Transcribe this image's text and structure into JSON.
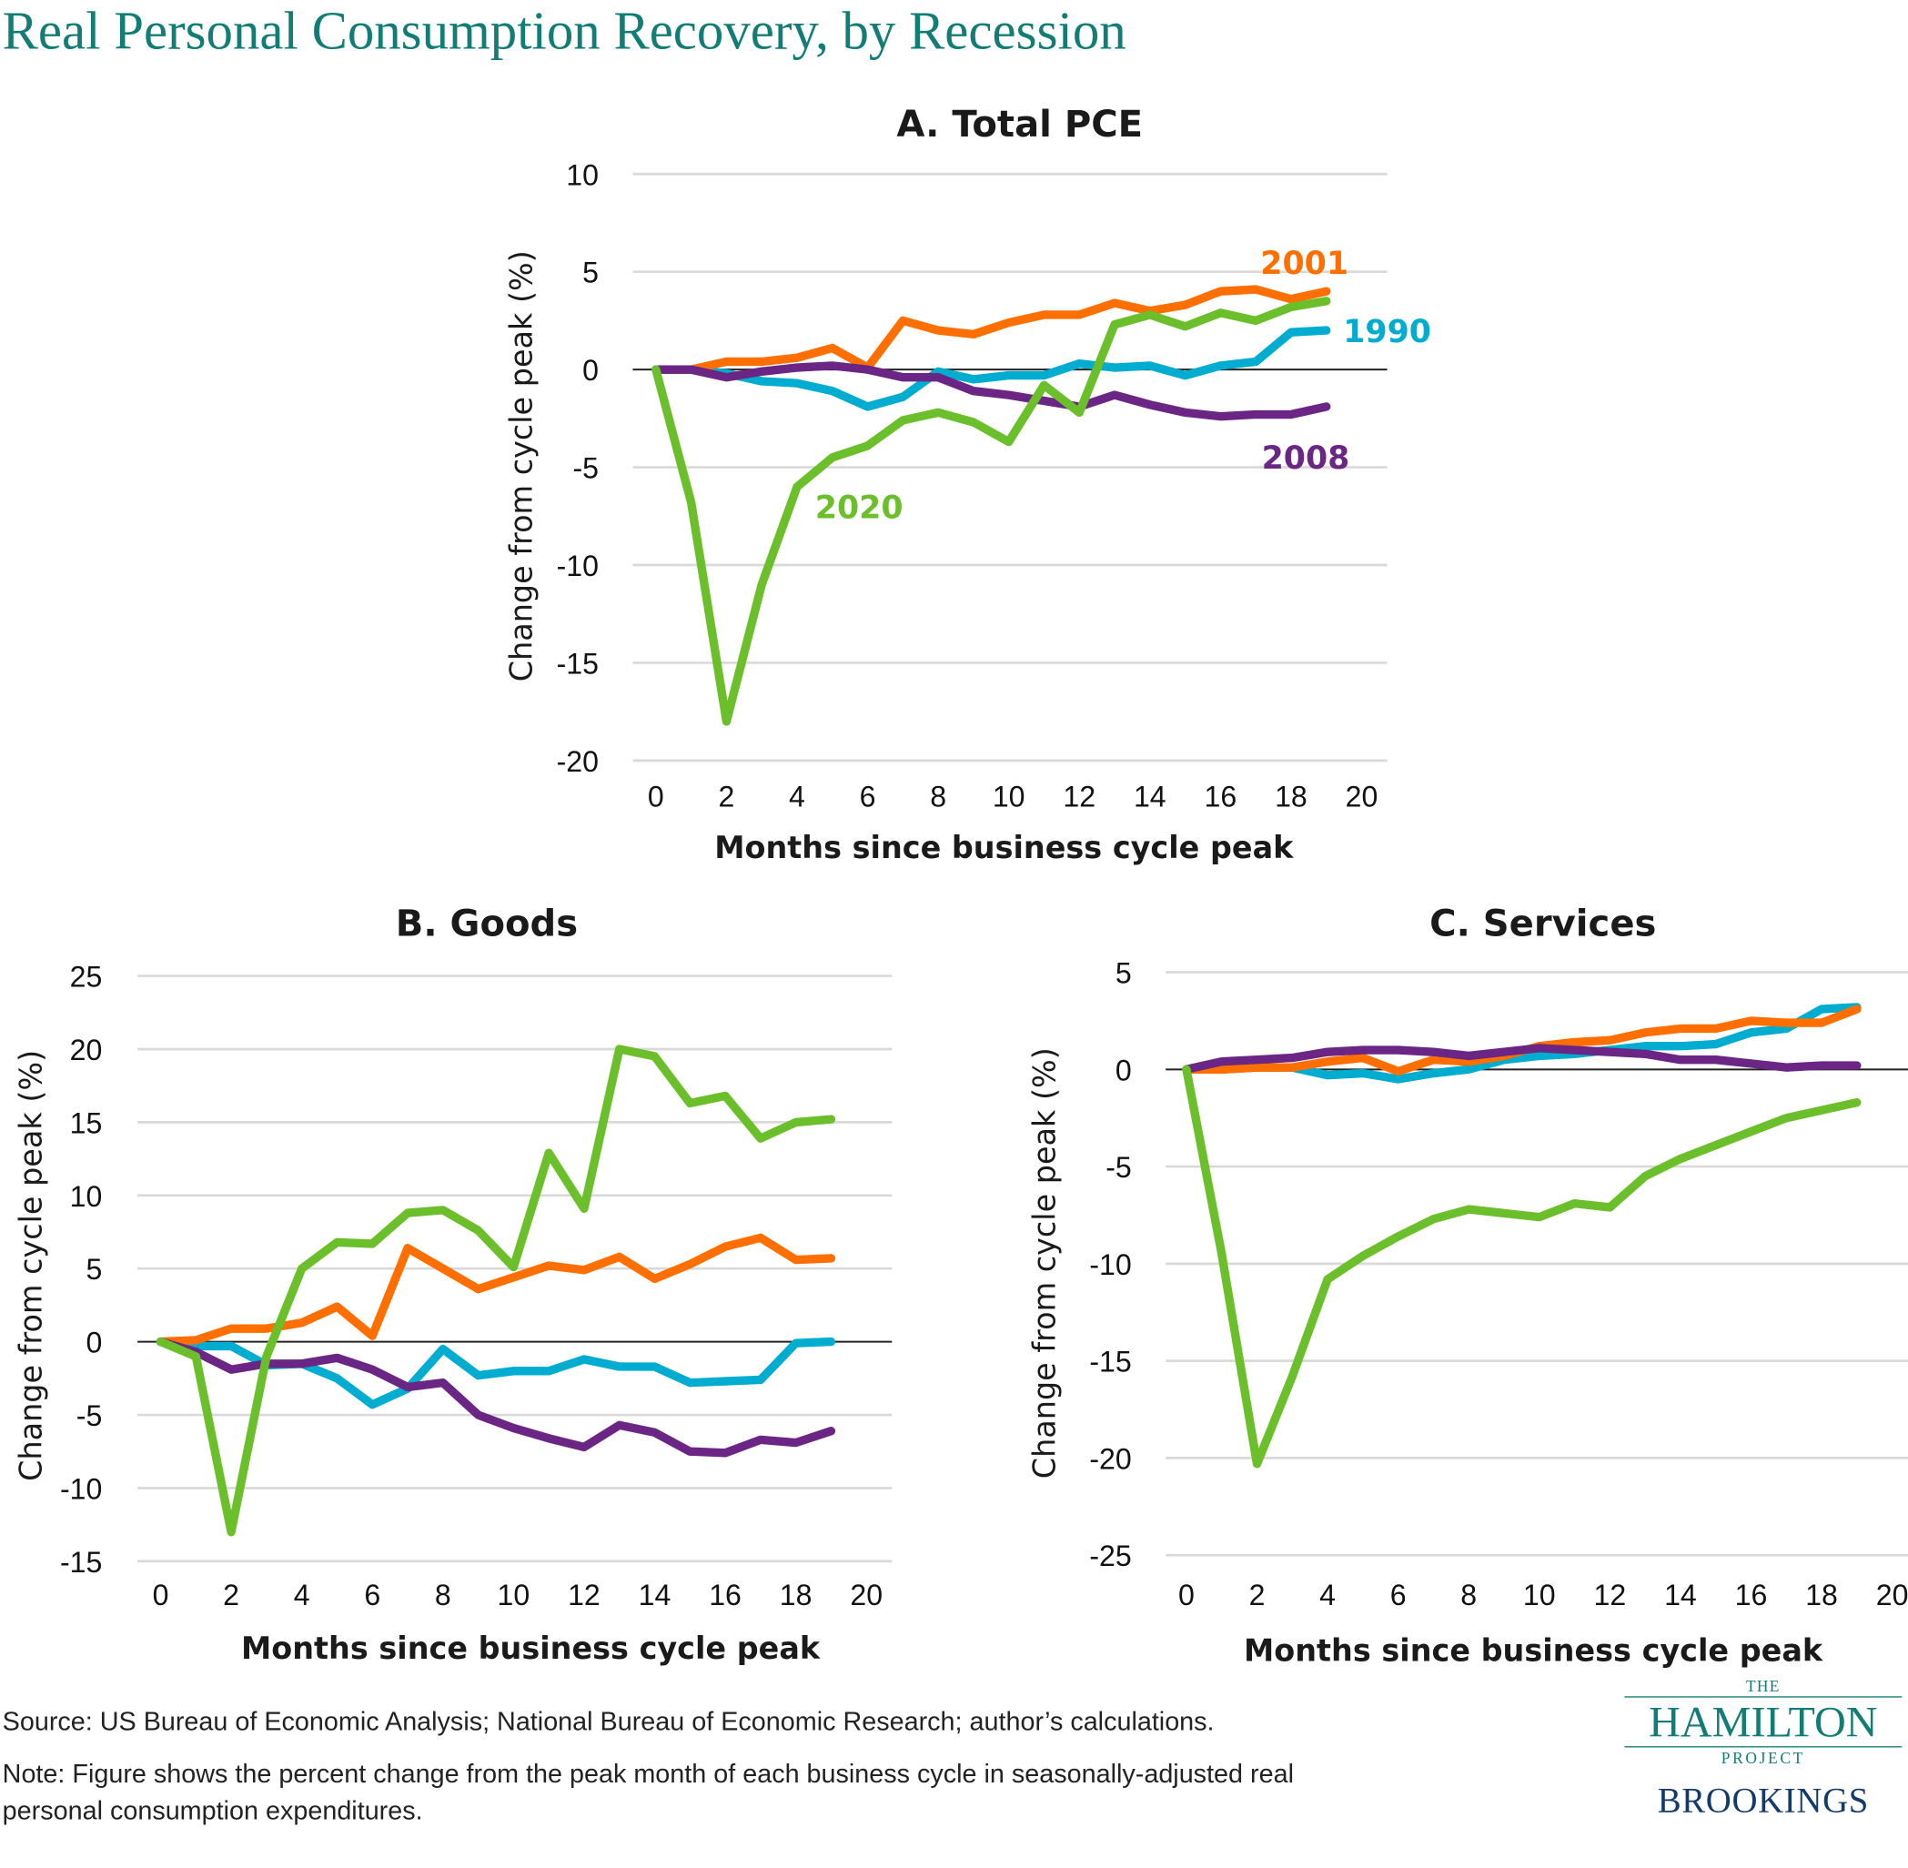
{
  "title": "Real Personal Consumption Recovery, by Recession",
  "colors": {
    "title": "#127d74",
    "1990": "#00acd0",
    "2001": "#ff6f00",
    "2008": "#6b2584",
    "2020": "#6abf2a"
  },
  "chart_data": [
    {
      "type": "line",
      "title": "A. Total PCE",
      "xlabel": "Months since business cycle peak",
      "ylabel": "Change from cycle peak (%)",
      "xlim": [
        0,
        20
      ],
      "ylim": [
        -20,
        10
      ],
      "xticks": [
        0,
        2,
        4,
        6,
        8,
        10,
        12,
        14,
        16,
        18,
        20
      ],
      "yticks": [
        10,
        5,
        0,
        -5,
        -10,
        -15,
        -20
      ],
      "grid": true,
      "x": [
        0,
        1,
        2,
        3,
        4,
        5,
        6,
        7,
        8,
        9,
        10,
        11,
        12,
        13,
        14,
        15,
        16,
        17,
        18,
        19
      ],
      "series": [
        {
          "name": "1990",
          "label_shown": true,
          "values": [
            0,
            0,
            -0.2,
            -0.6,
            -0.7,
            -1.1,
            -1.9,
            -1.4,
            -0.1,
            -0.5,
            -0.3,
            -0.3,
            0.3,
            0.1,
            0.2,
            -0.3,
            0.2,
            0.4,
            1.9,
            2.0
          ]
        },
        {
          "name": "2001",
          "label_shown": true,
          "values": [
            0,
            0,
            0.4,
            0.4,
            0.6,
            1.1,
            0.1,
            2.5,
            2.0,
            1.8,
            2.4,
            2.8,
            2.8,
            3.4,
            3.0,
            3.3,
            4.0,
            4.1,
            3.6,
            4.0
          ]
        },
        {
          "name": "2008",
          "label_shown": true,
          "values": [
            0,
            0,
            -0.4,
            -0.1,
            0.1,
            0.2,
            0.0,
            -0.4,
            -0.4,
            -1.1,
            -1.3,
            -1.6,
            -1.9,
            -1.3,
            -1.8,
            -2.2,
            -2.4,
            -2.3,
            -2.3,
            -1.9
          ]
        },
        {
          "name": "2020",
          "label_shown": true,
          "values": [
            0,
            -6.8,
            -18.0,
            -11.0,
            -6.0,
            -4.5,
            -3.9,
            -2.6,
            -2.2,
            -2.7,
            -3.7,
            -0.8,
            -2.2,
            2.3,
            2.8,
            2.2,
            2.9,
            2.5,
            3.2,
            3.5
          ]
        }
      ]
    },
    {
      "type": "line",
      "title": "B. Goods",
      "xlabel": "Months since business cycle peak",
      "ylabel": "Change from cycle peak (%)",
      "xlim": [
        0,
        20
      ],
      "ylim": [
        -15,
        25
      ],
      "xticks": [
        0,
        2,
        4,
        6,
        8,
        10,
        12,
        14,
        16,
        18,
        20
      ],
      "yticks": [
        25,
        20,
        15,
        10,
        5,
        0,
        -5,
        -10,
        -15
      ],
      "grid": true,
      "x": [
        0,
        1,
        2,
        3,
        4,
        5,
        6,
        7,
        8,
        9,
        10,
        11,
        12,
        13,
        14,
        15,
        16,
        17,
        18,
        19
      ],
      "series": [
        {
          "name": "1990",
          "values": [
            0,
            -0.3,
            -0.3,
            -1.6,
            -1.5,
            -2.5,
            -4.3,
            -3.2,
            -0.5,
            -2.3,
            -2.0,
            -2.0,
            -1.2,
            -1.7,
            -1.7,
            -2.8,
            -2.7,
            -2.6,
            -0.1,
            0.0
          ]
        },
        {
          "name": "2001",
          "values": [
            0,
            0.1,
            0.9,
            0.9,
            1.3,
            2.4,
            0.4,
            6.4,
            5.0,
            3.6,
            4.4,
            5.2,
            4.9,
            5.8,
            4.3,
            5.3,
            6.5,
            7.1,
            5.6,
            5.7
          ]
        },
        {
          "name": "2008",
          "values": [
            0,
            -0.7,
            -1.9,
            -1.5,
            -1.5,
            -1.1,
            -1.9,
            -3.1,
            -2.8,
            -5.0,
            -5.9,
            -6.6,
            -7.2,
            -5.7,
            -6.2,
            -7.5,
            -7.6,
            -6.7,
            -6.9,
            -6.1
          ]
        },
        {
          "name": "2020",
          "values": [
            0,
            -1.0,
            -13.0,
            -1.0,
            5.0,
            6.8,
            6.7,
            8.8,
            9.0,
            7.6,
            5.1,
            12.9,
            9.1,
            20.0,
            19.5,
            16.3,
            16.8,
            13.9,
            15.0,
            15.2
          ]
        }
      ]
    },
    {
      "type": "line",
      "title": "C. Services",
      "xlabel": "Months since business cycle peak",
      "ylabel": "Change from cycle peak (%)",
      "xlim": [
        0,
        20
      ],
      "ylim": [
        -25,
        5
      ],
      "xticks": [
        0,
        2,
        4,
        6,
        8,
        10,
        12,
        14,
        16,
        18,
        20
      ],
      "yticks": [
        5,
        0,
        -5,
        -10,
        -15,
        -20,
        -25
      ],
      "grid": true,
      "x": [
        0,
        1,
        2,
        3,
        4,
        5,
        6,
        7,
        8,
        9,
        10,
        11,
        12,
        13,
        14,
        15,
        16,
        17,
        18,
        19
      ],
      "series": [
        {
          "name": "1990",
          "values": [
            0,
            0,
            0.1,
            0.1,
            -0.3,
            -0.2,
            -0.5,
            -0.2,
            0,
            0.5,
            0.7,
            0.8,
            1.0,
            1.2,
            1.2,
            1.3,
            1.9,
            2.1,
            3.1,
            3.2
          ]
        },
        {
          "name": "2001",
          "values": [
            0,
            0,
            0.1,
            0.1,
            0.4,
            0.6,
            -0.1,
            0.5,
            0.4,
            0.7,
            1.2,
            1.4,
            1.5,
            1.9,
            2.1,
            2.1,
            2.5,
            2.4,
            2.4,
            3.1
          ]
        },
        {
          "name": "2008",
          "values": [
            0,
            0.4,
            0.5,
            0.6,
            0.9,
            1.0,
            1.0,
            0.9,
            0.7,
            0.9,
            1.1,
            1.0,
            0.9,
            0.8,
            0.5,
            0.5,
            0.3,
            0.1,
            0.2,
            0.2
          ]
        },
        {
          "name": "2020",
          "values": [
            0,
            -9.5,
            -20.3,
            -15.8,
            -10.8,
            -9.6,
            -8.6,
            -7.7,
            -7.2,
            -7.4,
            -7.6,
            -6.9,
            -7.1,
            -5.5,
            -4.6,
            -3.9,
            -3.2,
            -2.5,
            -2.1,
            -1.7
          ]
        }
      ]
    }
  ],
  "footer": {
    "source": "Source: US Bureau of Economic Analysis; National Bureau of Economic Research; author’s calculations.",
    "note_line1": "Note: Figure shows the percent change from the peak month of each business cycle in seasonally-adjusted real",
    "note_line2": "personal consumption expenditures."
  },
  "logo": {
    "the": "THE",
    "hamilton": "HAMILTON",
    "project": "PROJECT",
    "brookings": "BROOKINGS"
  }
}
